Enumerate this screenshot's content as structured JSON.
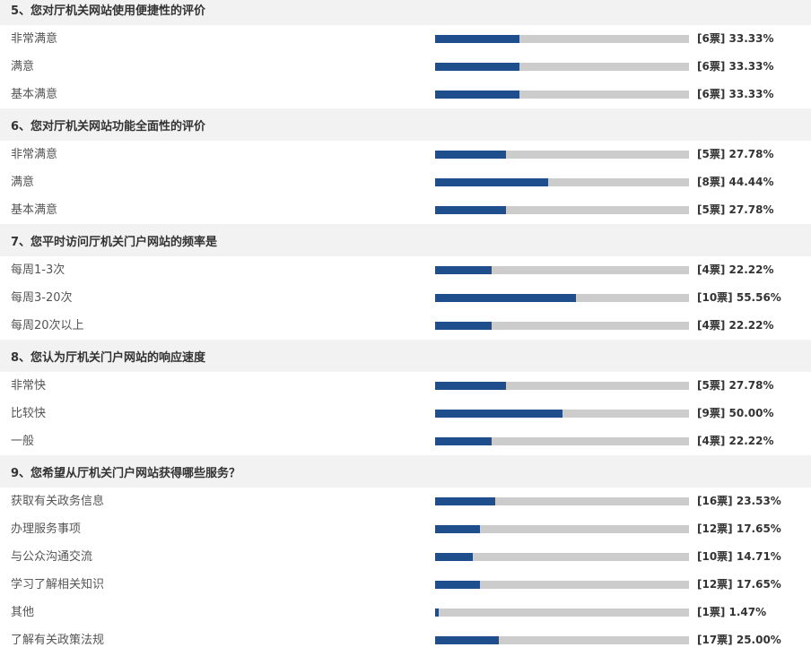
{
  "colors": {
    "header_bg": "#f2f2f2",
    "bar_fill": "#1f4e8c",
    "bar_track": "#cccccc"
  },
  "questions": [
    {
      "title": "5、您对厅机关网站使用便捷性的评价",
      "options": [
        {
          "label": "非常满意",
          "result": "[6票] 33.33%",
          "percent": 33.33
        },
        {
          "label": "满意",
          "result": "[6票] 33.33%",
          "percent": 33.33
        },
        {
          "label": "基本满意",
          "result": "[6票] 33.33%",
          "percent": 33.33
        }
      ]
    },
    {
      "title": "6、您对厅机关网站功能全面性的评价",
      "options": [
        {
          "label": "非常满意",
          "result": "[5票] 27.78%",
          "percent": 27.78
        },
        {
          "label": "满意",
          "result": "[8票] 44.44%",
          "percent": 44.44
        },
        {
          "label": "基本满意",
          "result": "[5票] 27.78%",
          "percent": 27.78
        }
      ]
    },
    {
      "title": "7、您平时访问厅机关门户网站的频率是",
      "options": [
        {
          "label": "每周1-3次",
          "result": "[4票] 22.22%",
          "percent": 22.22
        },
        {
          "label": "每周3-20次",
          "result": "[10票] 55.56%",
          "percent": 55.56
        },
        {
          "label": "每周20次以上",
          "result": "[4票] 22.22%",
          "percent": 22.22
        }
      ]
    },
    {
      "title": "8、您认为厅机关门户网站的响应速度",
      "options": [
        {
          "label": "非常快",
          "result": "[5票] 27.78%",
          "percent": 27.78
        },
        {
          "label": "比较快",
          "result": "[9票] 50.00%",
          "percent": 50.0
        },
        {
          "label": "一般",
          "result": "[4票] 22.22%",
          "percent": 22.22
        }
      ]
    },
    {
      "title": "9、您希望从厅机关门户网站获得哪些服务？",
      "options": [
        {
          "label": "获取有关政务信息",
          "result": "[16票] 23.53%",
          "percent": 23.53
        },
        {
          "label": "办理服务事项",
          "result": "[12票] 17.65%",
          "percent": 17.65
        },
        {
          "label": "与公众沟通交流",
          "result": "[10票] 14.71%",
          "percent": 14.71
        },
        {
          "label": "学习了解相关知识",
          "result": "[12票] 17.65%",
          "percent": 17.65
        },
        {
          "label": "其他",
          "result": "[1票] 1.47%",
          "percent": 1.47
        },
        {
          "label": "了解有关政策法规",
          "result": "[17票] 25.00%",
          "percent": 25.0
        }
      ]
    }
  ]
}
